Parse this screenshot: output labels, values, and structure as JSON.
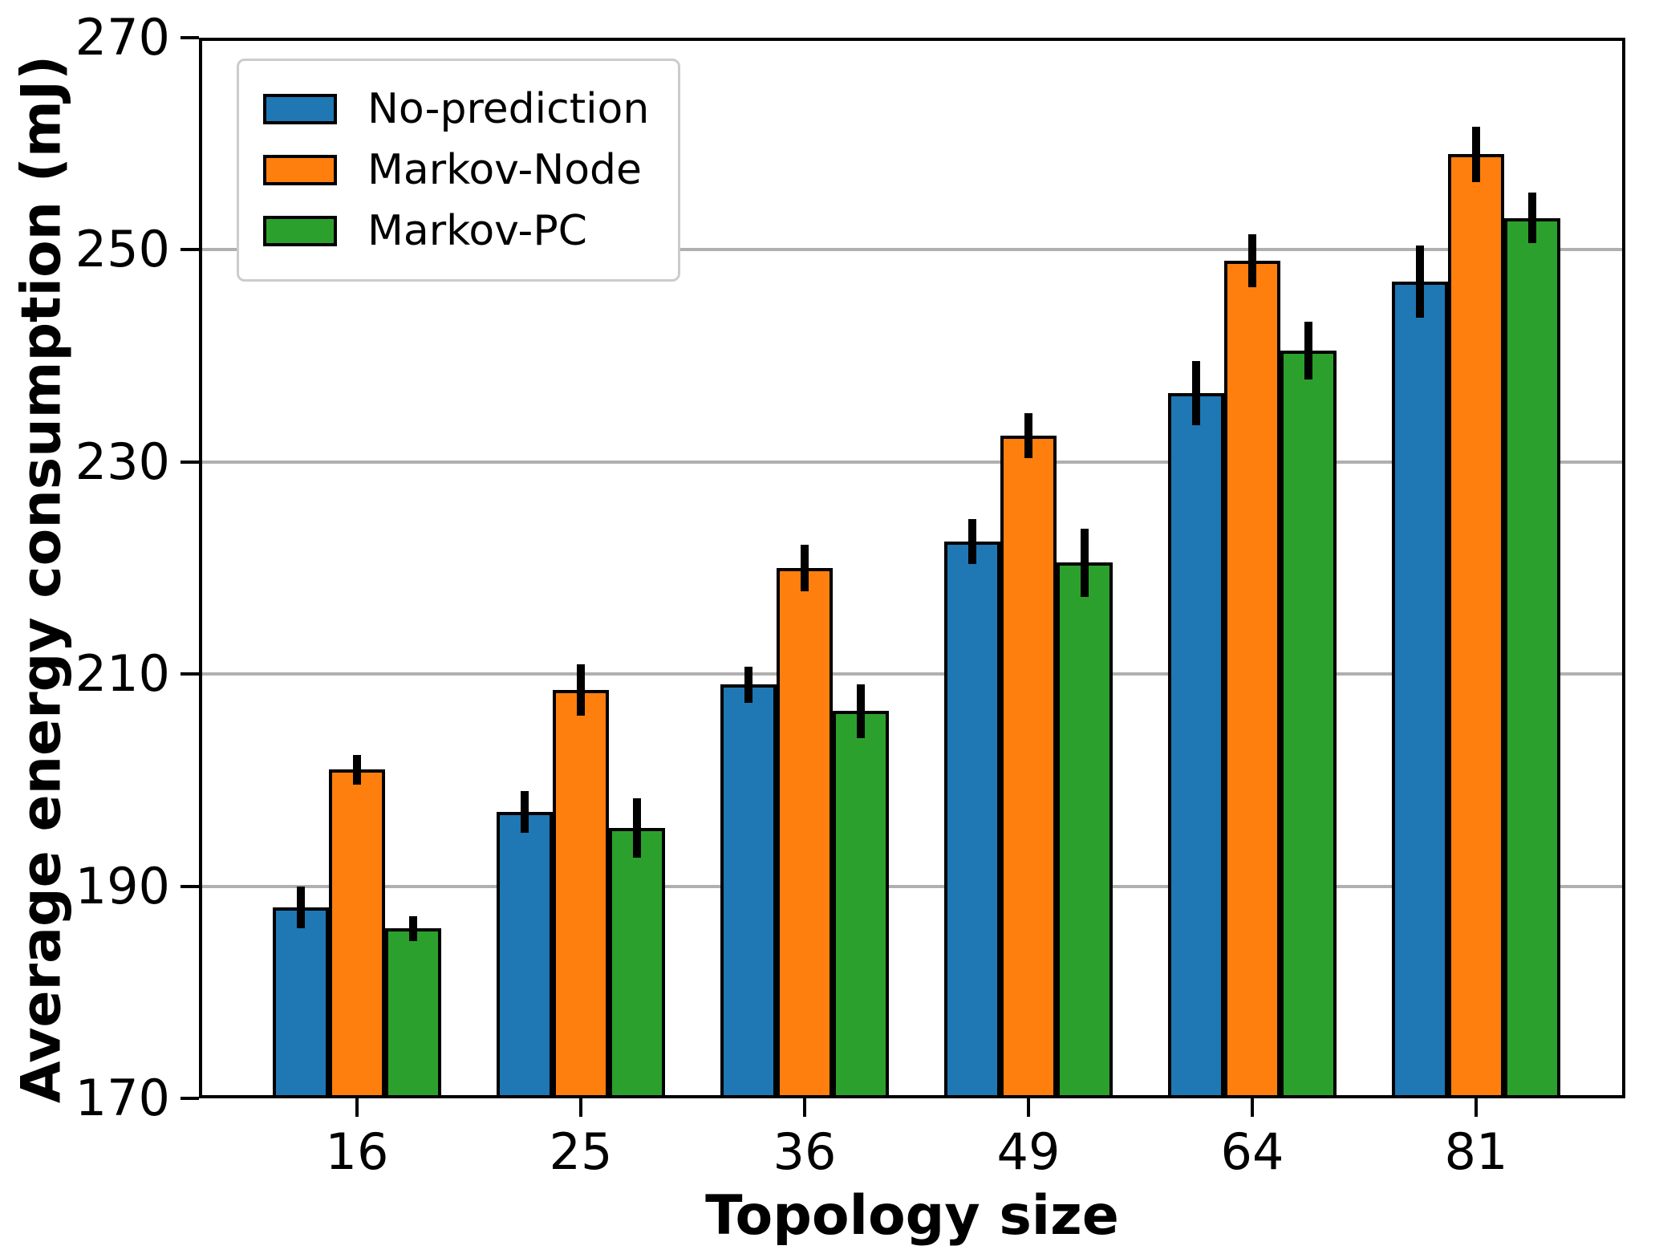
{
  "chart_data": {
    "type": "bar",
    "title": "",
    "xlabel": "Topology size",
    "ylabel": "Average energy consumption (mJ)",
    "categories": [
      "16",
      "25",
      "36",
      "49",
      "64",
      "81"
    ],
    "series": [
      {
        "name": "No-prediction",
        "color": "#1f77b4",
        "values": [
          188,
          197,
          209,
          222.5,
          236.5,
          247
        ],
        "errors": [
          2,
          2,
          1.7,
          2.1,
          3,
          3.4
        ]
      },
      {
        "name": "Markov-Node",
        "color": "#ff7f0e",
        "values": [
          201,
          208.5,
          220,
          232.5,
          249,
          259
        ],
        "errors": [
          1.4,
          2.4,
          2.2,
          2.1,
          2.5,
          2.6
        ]
      },
      {
        "name": "Markov-PC",
        "color": "#2ca02c",
        "values": [
          186,
          195.5,
          206.5,
          220.5,
          240.5,
          253
        ],
        "errors": [
          1.2,
          2.8,
          2.5,
          3.2,
          2.7,
          2.4
        ]
      }
    ],
    "ylim": [
      170,
      270
    ],
    "yticks": [
      170,
      190,
      210,
      230,
      250,
      270
    ],
    "grid": "horizontal",
    "grid_color": "#b0b0b0",
    "bar_edge_color": "#000000",
    "error_bar_color": "#000000",
    "spine_color": "#000000",
    "legend_position": "upper-left"
  }
}
